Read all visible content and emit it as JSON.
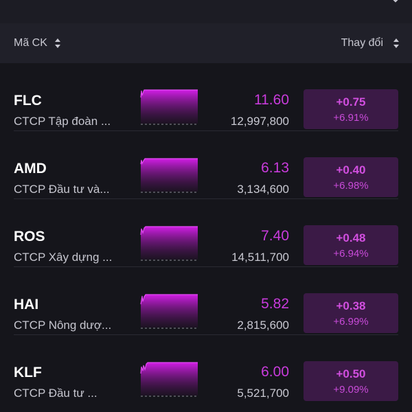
{
  "header": {
    "symbol_label": "Mã CK",
    "change_label": "Thay đổi"
  },
  "colors": {
    "accent": "#c93bdc",
    "badge_bg": "#3b1a46",
    "background": "#15151b"
  },
  "stocks": [
    {
      "ticker": "FLC",
      "company": "CTCP Tập đoàn ...",
      "price": "11.60",
      "volume": "12,997,800",
      "change": "+0.75",
      "change_pct": "+6.91%"
    },
    {
      "ticker": "AMD",
      "company": "CTCP Đầu tư và...",
      "price": "6.13",
      "volume": "3,134,600",
      "change": "+0.40",
      "change_pct": "+6.98%"
    },
    {
      "ticker": "ROS",
      "company": "CTCP Xây dựng ...",
      "price": "7.40",
      "volume": "14,511,700",
      "change": "+0.48",
      "change_pct": "+6.94%"
    },
    {
      "ticker": "HAI",
      "company": "CTCP Nông dượ...",
      "price": "5.82",
      "volume": "2,815,600",
      "change": "+0.38",
      "change_pct": "+6.99%"
    },
    {
      "ticker": "KLF",
      "company": "CTCP Đầu tư ...",
      "price": "6.00",
      "volume": "5,521,700",
      "change": "+0.50",
      "change_pct": "+9.09%"
    }
  ]
}
